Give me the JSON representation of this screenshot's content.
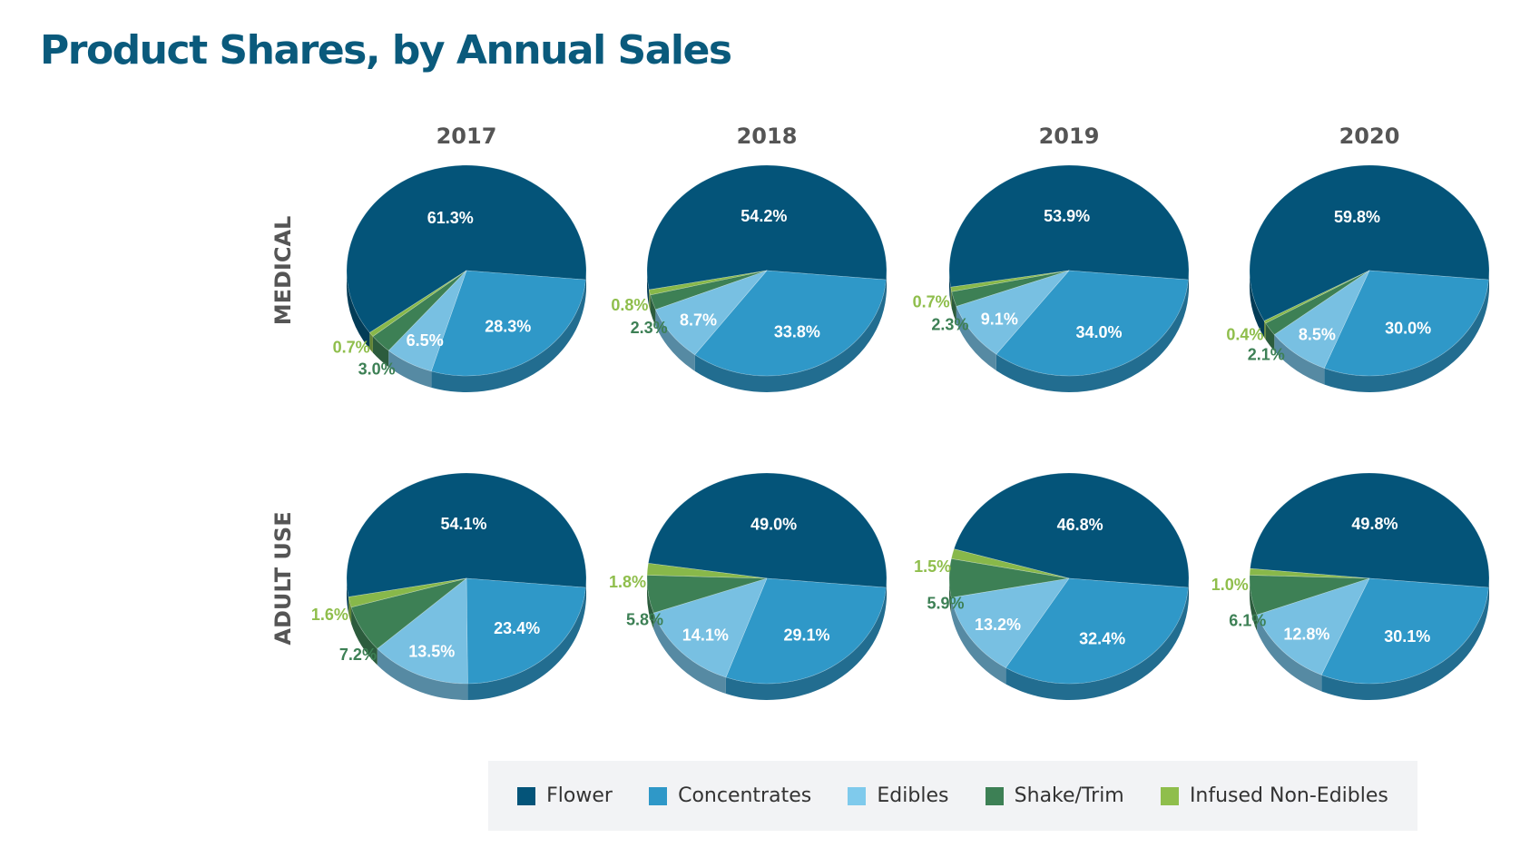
{
  "title": "Product Shares, by Annual Sales",
  "colors": {
    "Flower": "#045479",
    "Concentrates": "#2f98c8",
    "Edibles": "#78c0e2",
    "Shake/Trim": "#3d8055",
    "Infused Non-Edibles": "#88b84a"
  },
  "legend": [
    {
      "label": "Flower",
      "color": "#045479"
    },
    {
      "label": "Concentrates",
      "color": "#2f98c8"
    },
    {
      "label": "Edibles",
      "color": "#7fcaec"
    },
    {
      "label": "Shake/Trim",
      "color": "#3d8055"
    },
    {
      "label": "Infused Non-Edibles",
      "color": "#8fbe4c"
    }
  ],
  "chart_data": {
    "type": "pie",
    "title": "Product Shares, by Annual Sales",
    "columns": [
      "2017",
      "2018",
      "2019",
      "2020"
    ],
    "rows": [
      "MEDICAL",
      "ADULT USE"
    ],
    "categories": [
      "Flower",
      "Concentrates",
      "Edibles",
      "Shake/Trim",
      "Infused Non-Edibles"
    ],
    "legend_position": "bottom",
    "pies": [
      {
        "row": "MEDICAL",
        "year": "2017",
        "values": [
          61.3,
          28.3,
          6.5,
          3.0,
          0.7
        ],
        "labels": [
          "61.3%",
          "28.3%",
          "6.5%",
          "3.0%",
          "0.7%"
        ]
      },
      {
        "row": "MEDICAL",
        "year": "2018",
        "values": [
          54.2,
          33.8,
          8.7,
          2.3,
          0.8
        ],
        "labels": [
          "54.2%",
          "33.8%",
          "8.7%",
          "2.3%",
          "0.8%"
        ]
      },
      {
        "row": "MEDICAL",
        "year": "2019",
        "values": [
          53.9,
          34.0,
          9.1,
          2.3,
          0.7
        ],
        "labels": [
          "53.9%",
          "34.0%",
          "9.1%",
          "2.3%",
          "0.7%"
        ]
      },
      {
        "row": "MEDICAL",
        "year": "2020",
        "values": [
          59.8,
          30.0,
          8.5,
          2.1,
          0.4
        ],
        "labels": [
          "59.8%",
          "30.0%",
          "8.5%",
          "2.1%",
          "0.4%"
        ]
      },
      {
        "row": "ADULT USE",
        "year": "2017",
        "values": [
          54.1,
          23.4,
          13.5,
          7.2,
          1.6
        ],
        "labels": [
          "54.1%",
          "23.4%",
          "13.5%",
          "7.2%",
          "1.6%"
        ]
      },
      {
        "row": "ADULT USE",
        "year": "2018",
        "values": [
          49.0,
          29.1,
          14.1,
          5.8,
          1.8
        ],
        "labels": [
          "49.0%",
          "29.1%",
          "14.1%",
          "5.8%",
          "1.8%"
        ]
      },
      {
        "row": "ADULT USE",
        "year": "2019",
        "values": [
          46.8,
          32.4,
          13.2,
          5.9,
          1.5
        ],
        "labels": [
          "46.8%",
          "32.4%",
          "13.2%",
          "5.9%",
          "1.5%"
        ]
      },
      {
        "row": "ADULT USE",
        "year": "2020",
        "values": [
          49.8,
          30.1,
          12.8,
          6.1,
          1.0
        ],
        "labels": [
          "49.8%",
          "30.1%",
          "12.8%",
          "6.1%",
          "1.0%"
        ]
      }
    ]
  }
}
